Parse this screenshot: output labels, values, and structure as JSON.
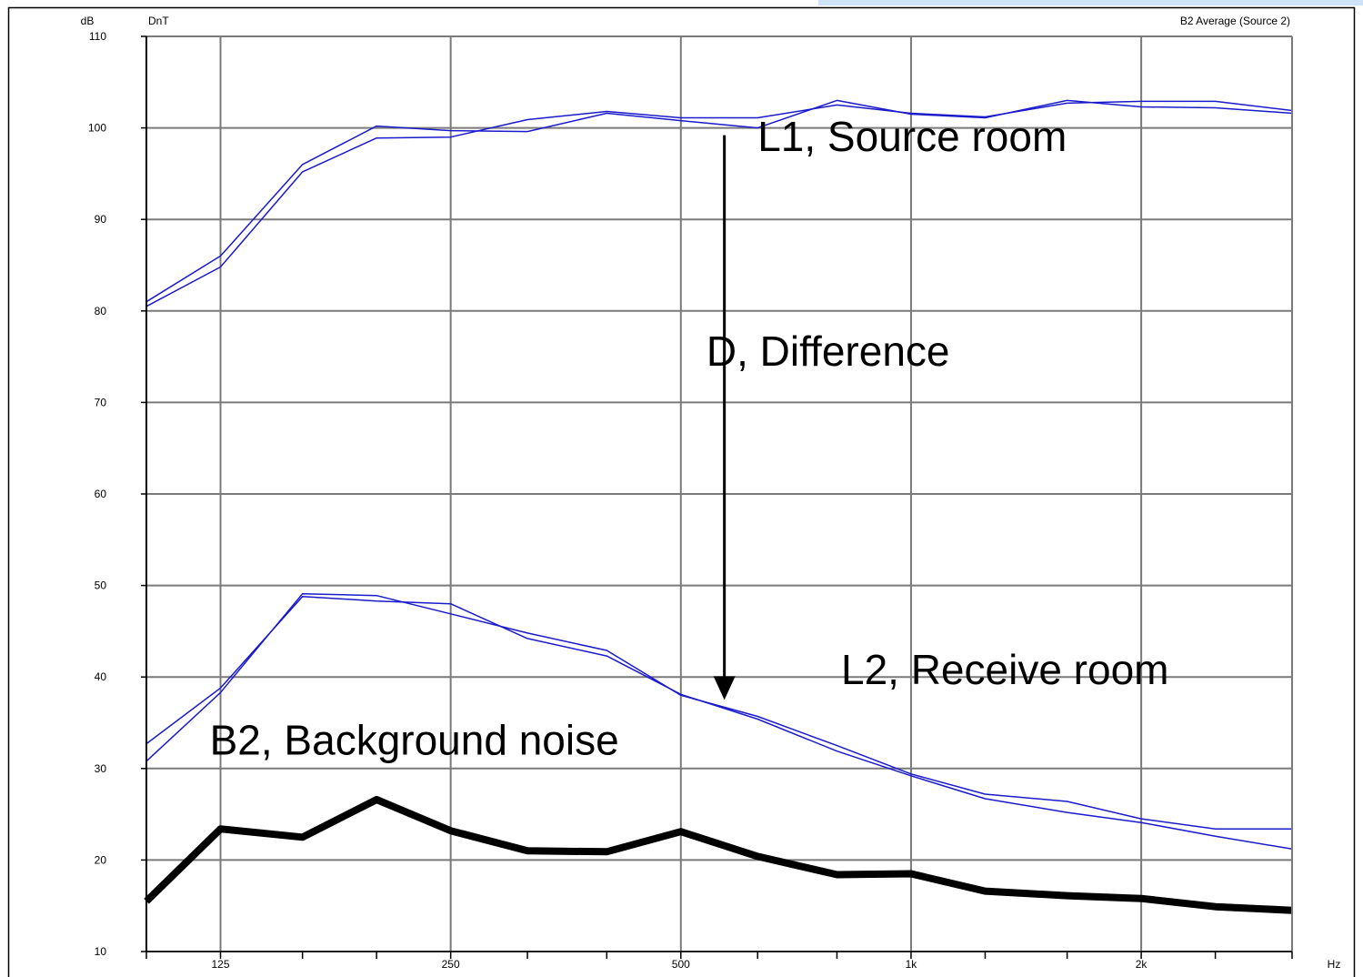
{
  "header": {
    "unit_label": "dB",
    "parameter_label": "DnT",
    "title": "B2 Average (Source 2)"
  },
  "chart_data": {
    "type": "line",
    "x_scale": "log",
    "xlabel": "Hz",
    "ylabel": "dB",
    "xlim": [
      100,
      3150
    ],
    "ylim": [
      10,
      110
    ],
    "y_ticks": [
      10,
      20,
      30,
      40,
      50,
      60,
      70,
      80,
      90,
      100,
      110
    ],
    "x_ticks": [
      {
        "value": 125,
        "label": "125"
      },
      {
        "value": 250,
        "label": "250"
      },
      {
        "value": 500,
        "label": "500"
      },
      {
        "value": 1000,
        "label": "1k"
      },
      {
        "value": 2000,
        "label": "2k"
      }
    ],
    "grid": true,
    "x": [
      100,
      125,
      160,
      200,
      250,
      315,
      400,
      500,
      630,
      800,
      1000,
      1250,
      1600,
      2000,
      2500,
      3150
    ],
    "series": [
      {
        "key": "l1a",
        "color": "#1a1acc",
        "width": 1.5,
        "values": [
          81,
          86,
          96,
          100.2,
          99.7,
          99.6,
          101.6,
          100.8,
          100,
          103,
          101.5,
          101.1,
          103,
          102.3,
          102.2,
          101.6
        ]
      },
      {
        "key": "l1b",
        "color": "#1a1acc",
        "width": 1.5,
        "values": [
          80.5,
          84.8,
          95.2,
          98.9,
          99,
          100.9,
          101.8,
          101.1,
          101.1,
          102.5,
          101.6,
          101.2,
          102.7,
          102.9,
          102.9,
          101.9
        ]
      },
      {
        "key": "l2a",
        "color": "#1a1acc",
        "width": 1.5,
        "values": [
          32.7,
          38.8,
          48.8,
          48.3,
          48,
          44.2,
          42.3,
          38.1,
          35.4,
          31.9,
          29.2,
          26.7,
          25.2,
          24.1,
          22.6,
          21.2
        ]
      },
      {
        "key": "l2b",
        "color": "#1a1acc",
        "width": 1.5,
        "values": [
          30.8,
          38.3,
          49.1,
          48.9,
          46.9,
          44.8,
          42.9,
          38,
          35.7,
          32.5,
          29.4,
          27.2,
          26.4,
          24.5,
          23.4,
          23.4
        ]
      },
      {
        "key": "b2",
        "color": "#000000",
        "width": 8,
        "values": [
          15.5,
          23.4,
          22.5,
          26.6,
          23.2,
          21,
          20.9,
          23.1,
          20.4,
          18.4,
          18.5,
          16.6,
          16.1,
          15.8,
          14.9,
          14.5
        ]
      }
    ],
    "annotations": [
      {
        "key": "source_room",
        "text": "L1, Source room",
        "x": 630,
        "y": 97.5
      },
      {
        "key": "difference",
        "text": "D, Difference",
        "x": 540,
        "y": 74
      },
      {
        "key": "receive_room",
        "text": "L2, Receive room",
        "x": 810,
        "y": 39.2
      },
      {
        "key": "background_noise",
        "text": "B2, Background noise",
        "x": 121,
        "y": 31.5
      }
    ],
    "arrow": {
      "x": 570,
      "y_from": 99.2,
      "y_to": 37.5,
      "color": "#000000"
    }
  }
}
